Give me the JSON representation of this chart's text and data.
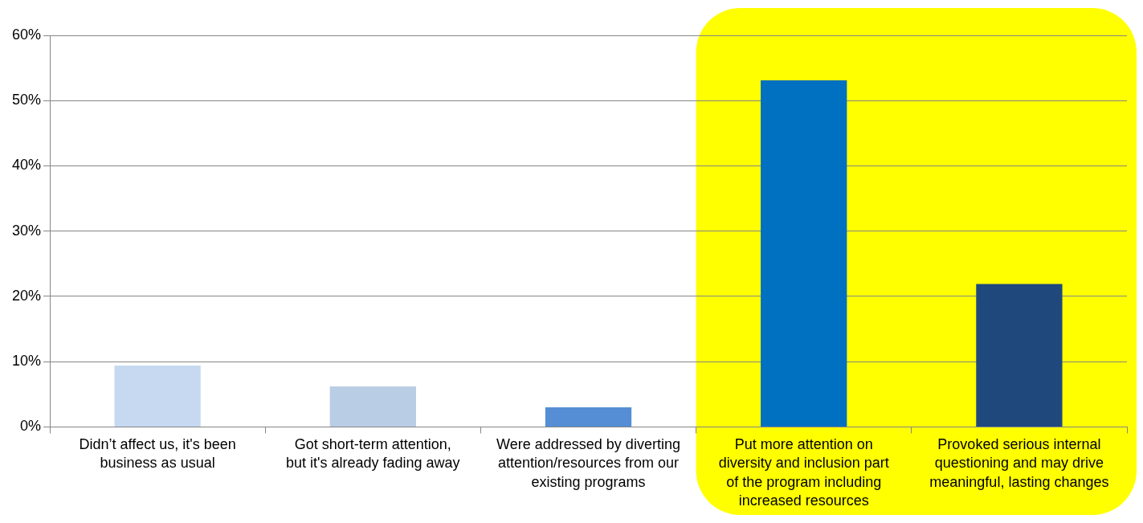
{
  "chart_data": {
    "type": "bar",
    "categories": [
      "Didn’t affect us, it's been business as usual",
      "Got short-term attention, but it's already fading away",
      "Were addressed by diverting attention/resources from our existing programs",
      "Put more attention on diversity and inclusion part of the program including increased resources",
      "Provoked serious internal questioning and may drive meaningful, lasting changes"
    ],
    "values": [
      9.4,
      6.2,
      3.0,
      53.1,
      21.9
    ],
    "colors": [
      "#c6d9f1",
      "#b9cde5",
      "#558ed5",
      "#0070c0",
      "#1f497d"
    ],
    "ylim": [
      0,
      60
    ],
    "yticks": [
      {
        "value": 0,
        "label": "0%"
      },
      {
        "value": 10,
        "label": "10%"
      },
      {
        "value": 20,
        "label": "20%"
      },
      {
        "value": 30,
        "label": "30%"
      },
      {
        "value": 40,
        "label": "40%"
      },
      {
        "value": 50,
        "label": "50%"
      },
      {
        "value": 60,
        "label": "60%"
      }
    ],
    "grid": "y",
    "bands": [
      {
        "axis": "x",
        "from": "Put more attention on diversity and inclusion part of the program including increased resources",
        "to": "Provoked serious internal questioning and may drive meaningful, lasting changes",
        "color": "#ffff00"
      }
    ]
  }
}
